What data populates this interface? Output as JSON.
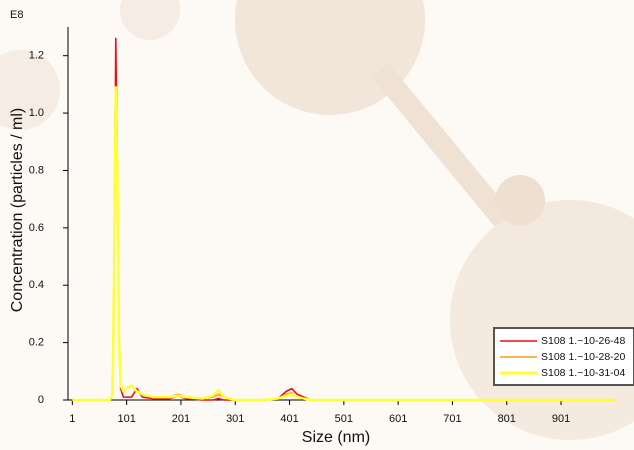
{
  "chart_data": {
    "type": "line",
    "y_multiplier": "E8",
    "xlabel": "Size (nm)",
    "ylabel": "Concentration (particles / ml)",
    "x": [
      1,
      60,
      70,
      75,
      78,
      81,
      84,
      87,
      90,
      95,
      100,
      110,
      120,
      130,
      150,
      180,
      195,
      210,
      240,
      260,
      270,
      280,
      300,
      350,
      380,
      395,
      405,
      415,
      440,
      500,
      1000
    ],
    "series": [
      {
        "name": "S108 1.~10-26-48",
        "color": "#e8101a",
        "values": [
          0,
          0,
          0,
          0.02,
          0.5,
          1.26,
          0.8,
          0.2,
          0.04,
          0.01,
          0.01,
          0.01,
          0.04,
          0.01,
          0.005,
          0.005,
          0.015,
          0.005,
          0,
          0,
          0.005,
          0,
          0,
          0,
          0.005,
          0.03,
          0.04,
          0.02,
          0,
          0,
          0
        ]
      },
      {
        "name": "S108 1.~10-28-20",
        "color": "#ff9a1e",
        "values": [
          0,
          0,
          0,
          0.02,
          0.4,
          0.95,
          0.7,
          0.2,
          0.05,
          0.03,
          0.04,
          0.05,
          0.03,
          0.02,
          0.01,
          0.01,
          0.02,
          0.01,
          0.005,
          0.01,
          0.02,
          0.01,
          0,
          0,
          0.005,
          0.02,
          0.025,
          0.01,
          0,
          0,
          0
        ]
      },
      {
        "name": "S108 1.~10-31-04",
        "color": "#ffff33",
        "values": [
          0,
          0,
          0,
          0.02,
          0.45,
          1.09,
          0.75,
          0.2,
          0.05,
          0.03,
          0.04,
          0.05,
          0.03,
          0.02,
          0.01,
          0.01,
          0.015,
          0.01,
          0.005,
          0.015,
          0.035,
          0.01,
          0,
          0,
          0.005,
          0.015,
          0.02,
          0.01,
          0,
          0,
          0
        ]
      }
    ],
    "xlim": [
      -7,
      993
    ],
    "ylim": [
      0,
      1.3
    ],
    "xticks": [
      1,
      101,
      201,
      301,
      401,
      501,
      601,
      701,
      801,
      901
    ],
    "yticks": [
      0,
      0.2,
      0.4,
      0.6,
      0.8,
      {
        "value": 1,
        "label": "1.0"
      },
      1.2
    ],
    "legend": "lower right"
  }
}
